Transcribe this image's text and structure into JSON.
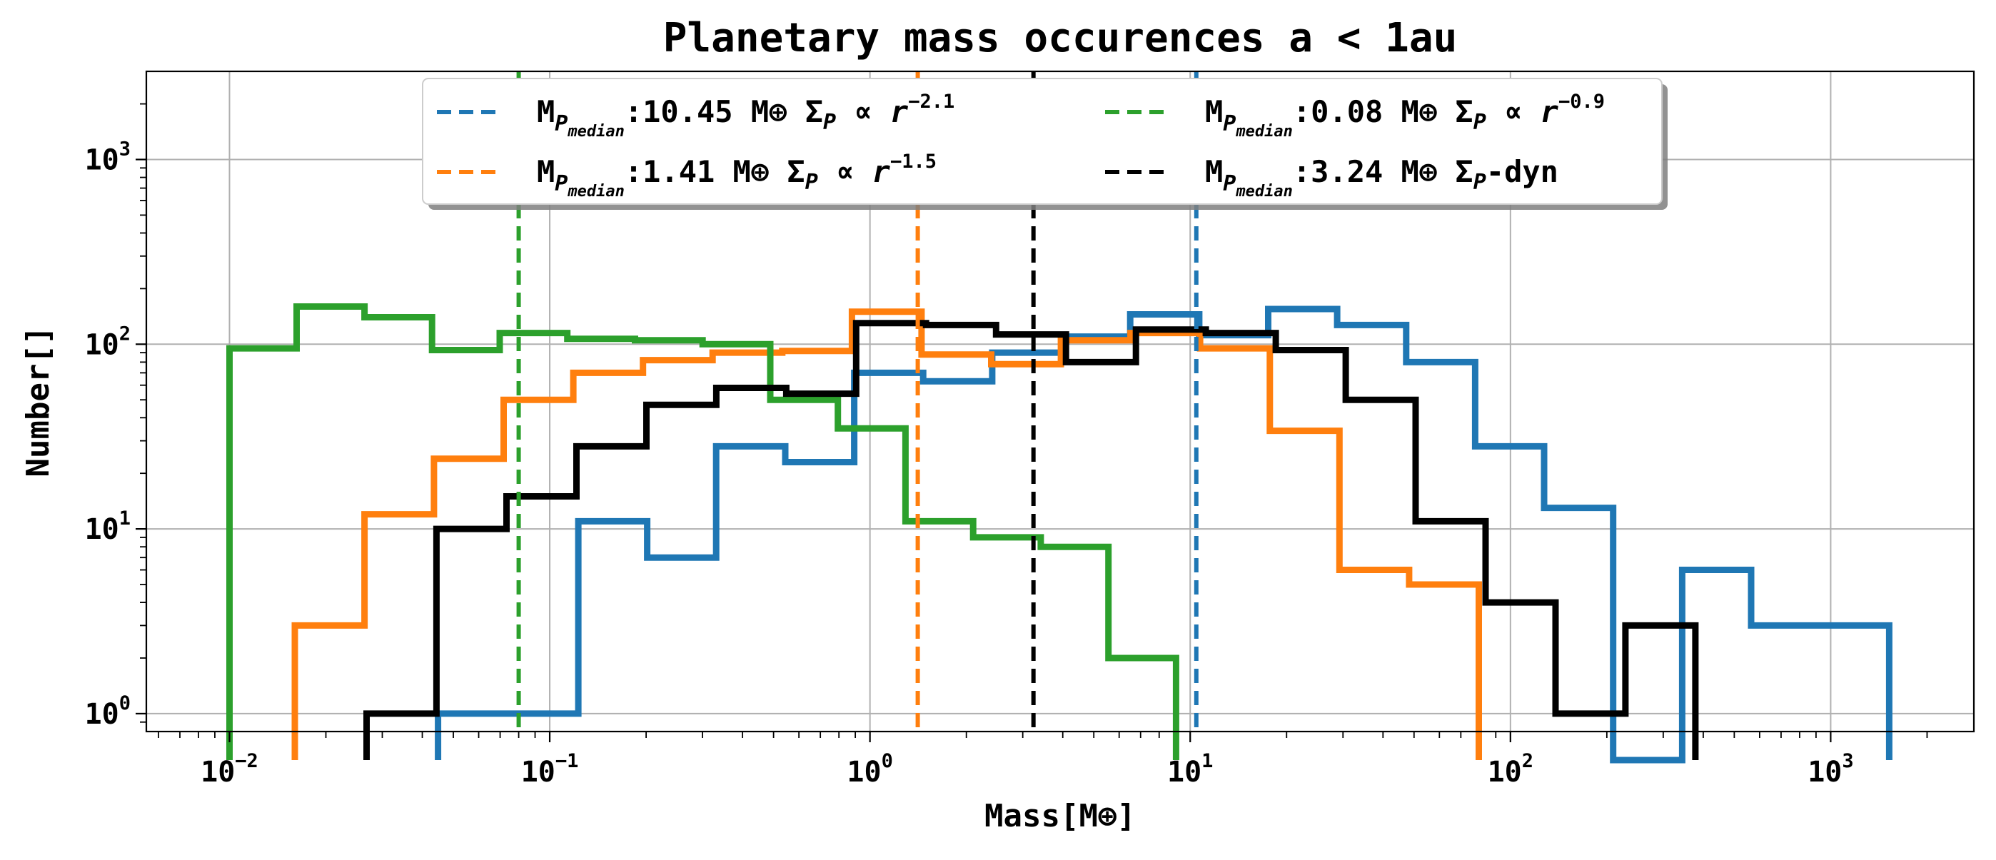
{
  "chart_data": {
    "type": "histogram-step",
    "title": "Planetary mass occurences a < 1au",
    "xlabel": "Mass[M⊕]",
    "ylabel": "Number[]",
    "xscale": "log",
    "yscale": "log",
    "xlim": [
      0.0055,
      2800
    ],
    "ylim": [
      0.8,
      3000
    ],
    "grid": true,
    "legend_location": "upper center",
    "legend_columns": 2,
    "x_ticks": [
      {
        "mantissa": "10",
        "exp": "−2",
        "value": 0.01
      },
      {
        "mantissa": "10",
        "exp": "−1",
        "value": 0.1
      },
      {
        "mantissa": "10",
        "exp": "0",
        "value": 1
      },
      {
        "mantissa": "10",
        "exp": "1",
        "value": 10
      },
      {
        "mantissa": "10",
        "exp": "2",
        "value": 100
      },
      {
        "mantissa": "10",
        "exp": "3",
        "value": 1000
      }
    ],
    "y_ticks": [
      {
        "mantissa": "10",
        "exp": "0",
        "value": 1
      },
      {
        "mantissa": "10",
        "exp": "1",
        "value": 10
      },
      {
        "mantissa": "10",
        "exp": "2",
        "value": 100
      },
      {
        "mantissa": "10",
        "exp": "3",
        "value": 1000
      }
    ],
    "series": [
      {
        "color": "#1f77b4",
        "median": 10.45,
        "legend": {
          "prefix": "M",
          "sub": "P",
          "subsub": "median",
          "value": ":10.45 M⊕ ",
          "sigma": "Σ",
          "sigma_sub": "P",
          "relation": " ∝ r",
          "exponent": "−2.1"
        },
        "edges": [
          0.0448,
          0.1228,
          0.2015,
          0.331,
          0.544,
          0.893,
          1.466,
          2.408,
          3.955,
          6.496,
          10.67,
          17.52,
          28.77,
          47.25,
          77.6,
          127.4,
          209.3,
          343.8,
          564.6,
          927.4,
          1523
        ],
        "counts": [
          1,
          11,
          7,
          28,
          23,
          70,
          63,
          90,
          110,
          145,
          112,
          155,
          127,
          80,
          28,
          13,
          0,
          6,
          3,
          3
        ]
      },
      {
        "color": "#ff7f0e",
        "median": 1.41,
        "legend": {
          "prefix": "M",
          "sub": "P",
          "subsub": "median",
          "value": ":1.41 M⊕ ",
          "sigma": "Σ",
          "sigma_sub": "P",
          "relation": " ∝ r",
          "exponent": "−1.5"
        },
        "edges": [
          0.016,
          0.0264,
          0.0435,
          0.0718,
          0.1185,
          0.1955,
          0.3226,
          0.5323,
          0.8783,
          1.449,
          2.391,
          3.946,
          6.511,
          10.74,
          17.73,
          29.25,
          48.27,
          79.64
        ],
        "counts": [
          3,
          12,
          24,
          50,
          70,
          82,
          90,
          92,
          150,
          88,
          78,
          105,
          115,
          95,
          34,
          6,
          5
        ]
      },
      {
        "color": "#2ca02c",
        "median": 0.08,
        "legend": {
          "prefix": "M",
          "sub": "P",
          "subsub": "median",
          "value": ":0.08 M⊕ ",
          "sigma": "Σ",
          "sigma_sub": "P",
          "relation": " ∝ r",
          "exponent": "−0.9"
        },
        "edges": [
          0.01,
          0.0162,
          0.0264,
          0.0429,
          0.0698,
          0.1135,
          0.1846,
          0.3002,
          0.4882,
          0.794,
          1.291,
          2.1,
          3.415,
          5.554,
          9.034
        ],
        "counts": [
          95,
          160,
          140,
          93,
          115,
          107,
          105,
          100,
          50,
          35,
          11,
          9,
          8,
          2
        ]
      },
      {
        "color": "#000000",
        "median": 3.24,
        "legend": {
          "prefix": "M",
          "sub": "P",
          "subsub": "median",
          "value": ":3.24 M⊕ ",
          "sigma": "Σ",
          "sigma_sub": "P",
          "relation": "-dyn",
          "exponent": ""
        },
        "edges": [
          0.0268,
          0.0443,
          0.0733,
          0.1212,
          0.2004,
          0.3313,
          0.5478,
          0.9057,
          1.497,
          2.476,
          4.094,
          6.768,
          11.19,
          18.5,
          30.59,
          50.58,
          83.63,
          138.3,
          228.6,
          378.0
        ],
        "counts": [
          1,
          10,
          15,
          28,
          47,
          58,
          54,
          130,
          127,
          113,
          80,
          120,
          115,
          93,
          50,
          11,
          4,
          1,
          3
        ]
      }
    ]
  }
}
